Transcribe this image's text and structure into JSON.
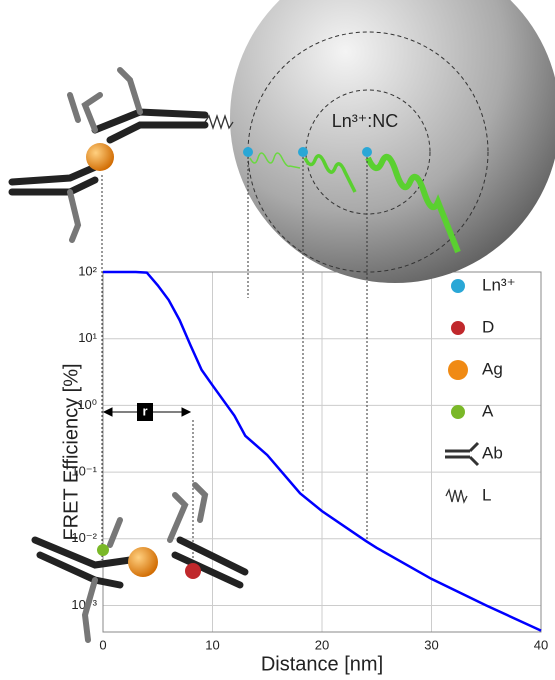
{
  "chart_data": {
    "type": "line",
    "xlabel": "Distance [nm]",
    "ylabel": "FRET Efficiency [%]",
    "x": [
      0,
      1,
      2,
      3,
      4,
      5,
      6,
      7,
      8,
      9,
      10,
      12,
      13,
      15,
      18,
      20,
      24,
      25,
      30,
      35,
      40
    ],
    "values": [
      100,
      100,
      100,
      100,
      98,
      63,
      38,
      19,
      7.9,
      3.4,
      2.0,
      0.7,
      0.35,
      0.18,
      0.048,
      0.026,
      0.0093,
      0.0073,
      0.0025,
      0.001,
      0.00042
    ],
    "color": "#0000ff",
    "log_y": true,
    "grid": true,
    "xlim": [
      0,
      40
    ],
    "xticks": [
      0,
      10,
      20,
      30,
      40
    ],
    "ylim": [
      0.0004,
      100
    ],
    "yticks": [
      {
        "value": 100,
        "label": "10²"
      },
      {
        "value": 10,
        "label": "10¹"
      },
      {
        "value": 1,
        "label": "10⁰"
      },
      {
        "value": 0.1,
        "label": "10⁻¹"
      },
      {
        "value": 0.01,
        "label": "10⁻²"
      },
      {
        "value": 0.001,
        "label": "10⁻³"
      }
    ],
    "legend": [
      {
        "label": "Ln³⁺",
        "color": "#2aa7d6"
      },
      {
        "label": "D",
        "color": "#c0282c"
      },
      {
        "label": "Ag",
        "color": "#f08a14"
      },
      {
        "label": "A",
        "color": "#7ab828"
      },
      {
        "label": "Ab",
        "color": "#333333"
      },
      {
        "label": "L",
        "color": "#333333"
      }
    ],
    "annotations": {
      "nanocrystal": "Ln³⁺:NC",
      "distance": "r"
    }
  }
}
